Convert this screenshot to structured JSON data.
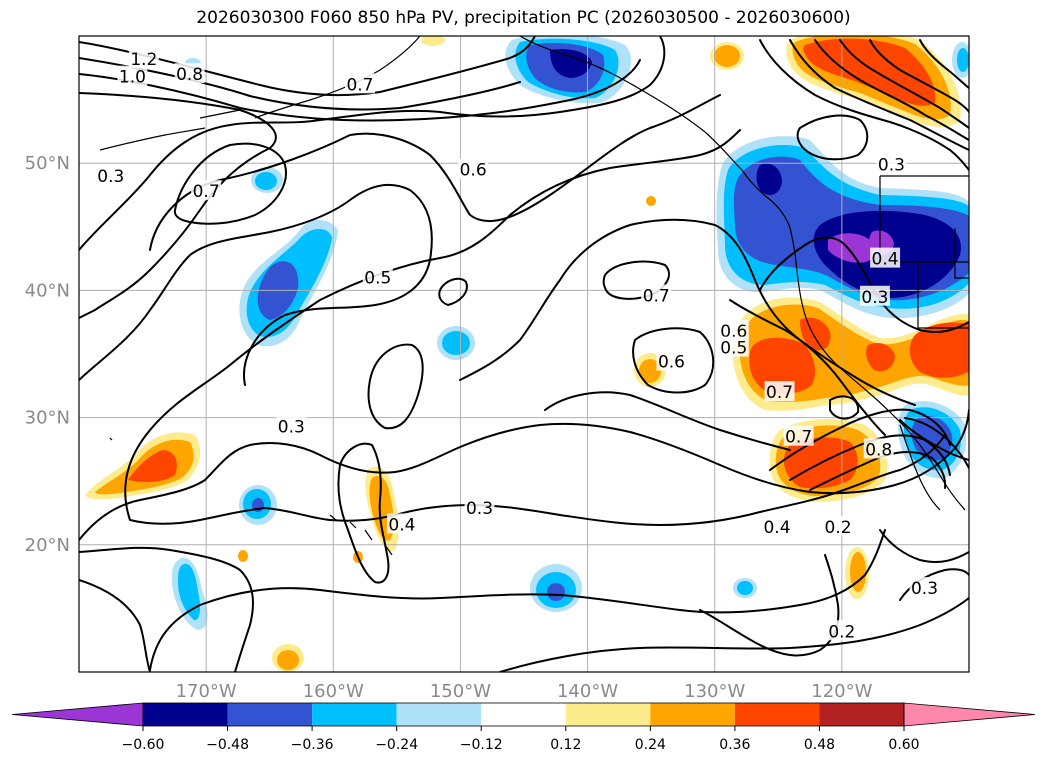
{
  "title": "2026030300 F060 850 hPa PV, precipitation PC (2026030500 - 2026030600)",
  "map": {
    "lon_range": [
      -180,
      -110
    ],
    "lat_range": [
      10,
      60
    ],
    "lat_ticks": [
      {
        "value": 20,
        "label": "20°N"
      },
      {
        "value": 30,
        "label": "30°N"
      },
      {
        "value": 40,
        "label": "40°N"
      },
      {
        "value": 50,
        "label": "50°N"
      }
    ],
    "lon_ticks": [
      {
        "value": -170,
        "label": "170°W"
      },
      {
        "value": -160,
        "label": "160°W"
      },
      {
        "value": -150,
        "label": "150°W"
      },
      {
        "value": -140,
        "label": "140°W"
      },
      {
        "value": -130,
        "label": "130°W"
      },
      {
        "value": -120,
        "label": "120°W"
      }
    ],
    "contour_labels": [
      {
        "text": "1.2",
        "lon": -174.9,
        "lat": 58.2
      },
      {
        "text": "1.0",
        "lon": -175.8,
        "lat": 56.8
      },
      {
        "text": "0.8",
        "lon": -171.3,
        "lat": 57.0
      },
      {
        "text": "0.7",
        "lon": -157.9,
        "lat": 56.2
      },
      {
        "text": "0.3",
        "lon": -177.5,
        "lat": 49.0
      },
      {
        "text": "0.7",
        "lon": -170.0,
        "lat": 47.8
      },
      {
        "text": "0.6",
        "lon": -149.0,
        "lat": 49.5
      },
      {
        "text": "0.5",
        "lon": -156.5,
        "lat": 41.0
      },
      {
        "text": "0.7",
        "lon": -134.6,
        "lat": 39.6
      },
      {
        "text": "0.6",
        "lon": -128.5,
        "lat": 36.8
      },
      {
        "text": "0.5",
        "lon": -128.5,
        "lat": 35.5
      },
      {
        "text": "0.3",
        "lon": -116.1,
        "lat": 49.9
      },
      {
        "text": "0.3",
        "lon": -117.4,
        "lat": 39.5
      },
      {
        "text": "0.4",
        "lon": -116.6,
        "lat": 42.5
      },
      {
        "text": "0.6",
        "lon": -133.4,
        "lat": 34.4
      },
      {
        "text": "0.3",
        "lon": -163.3,
        "lat": 29.3
      },
      {
        "text": "0.7",
        "lon": -124.9,
        "lat": 32.0
      },
      {
        "text": "0.7",
        "lon": -123.4,
        "lat": 28.5
      },
      {
        "text": "0.4",
        "lon": -154.6,
        "lat": 21.6
      },
      {
        "text": "0.3",
        "lon": -148.5,
        "lat": 22.9
      },
      {
        "text": "0.4",
        "lon": -125.1,
        "lat": 21.4
      },
      {
        "text": "0.2",
        "lon": -120.3,
        "lat": 21.4
      },
      {
        "text": "0.3",
        "lon": -113.5,
        "lat": 16.6
      },
      {
        "text": "0.2",
        "lon": -120.0,
        "lat": 13.2
      },
      {
        "text": "0.8",
        "lon": -117.1,
        "lat": 27.5
      }
    ]
  },
  "colorbar": {
    "levels": [
      "-0.60",
      "-0.48",
      "-0.36",
      "-0.24",
      "-0.12",
      "0.12",
      "0.24",
      "0.36",
      "0.48",
      "0.60"
    ],
    "colors": [
      "#9b35d6",
      "#01018f",
      "#3453d3",
      "#00bfff",
      "#afe1f8",
      "#ffffff",
      "#feeb8b",
      "#fea500",
      "#fe4500",
      "#b22222",
      "#ff87ab",
      "#ff87ab"
    ]
  }
}
